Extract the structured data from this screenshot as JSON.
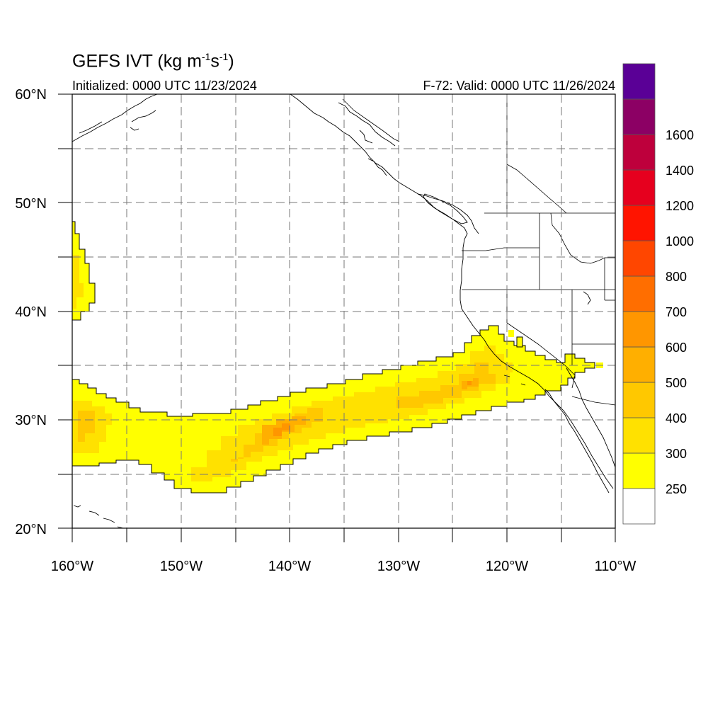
{
  "title": {
    "prefix": "GEFS IVT (kg m",
    "sup1": "-1",
    "mid": "s",
    "sup2": "-1",
    "suffix": ")"
  },
  "initialized_label": "Initialized: 0000 UTC 11/23/2024",
  "valid_label": "F-72: Valid: 0000 UTC 11/26/2024",
  "map": {
    "lon_range": [
      -160,
      -110
    ],
    "lat_range": [
      20,
      60
    ],
    "lat_ticks": [
      {
        "value": 60,
        "label": "60°N"
      },
      {
        "value": 50,
        "label": "50°N"
      },
      {
        "value": 40,
        "label": "40°N"
      },
      {
        "value": 30,
        "label": "30°N"
      },
      {
        "value": 20,
        "label": "20°N"
      }
    ],
    "lon_ticks": [
      {
        "value": -160,
        "label": "160°W"
      },
      {
        "value": -150,
        "label": "150°W"
      },
      {
        "value": -140,
        "label": "140°W"
      },
      {
        "value": -130,
        "label": "130°W"
      },
      {
        "value": -120,
        "label": "120°W"
      },
      {
        "value": -110,
        "label": "110°W"
      }
    ],
    "gridlines": "dashed"
  },
  "colorbar": {
    "labels": [
      "250",
      "300",
      "400",
      "500",
      "600",
      "700",
      "800",
      "1000",
      "1200",
      "1400",
      "1600"
    ],
    "colors": [
      "#ffffff",
      "#ffff00",
      "#ffe100",
      "#ffc800",
      "#ffaf00",
      "#ff9600",
      "#ff6e00",
      "#ff4600",
      "#ff1400",
      "#e6001e",
      "#be003c",
      "#8c0064",
      "#5a0096"
    ]
  }
}
